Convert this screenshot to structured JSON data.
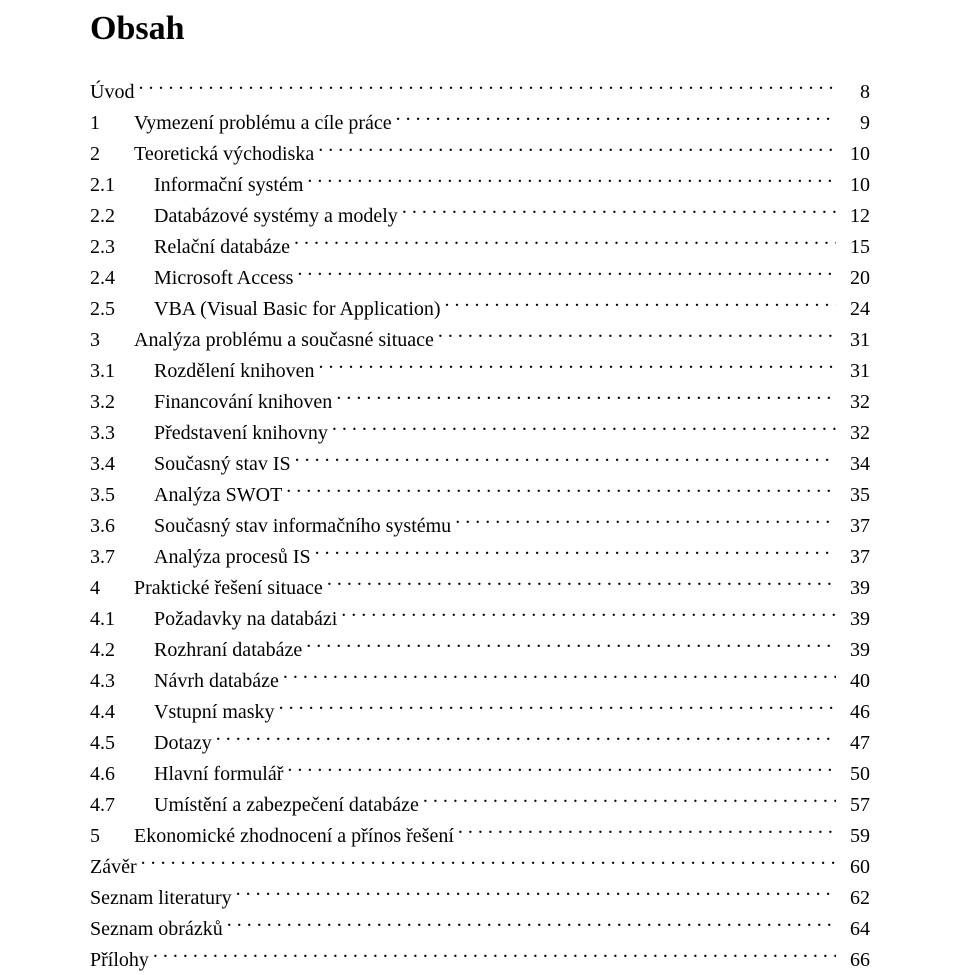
{
  "title": "Obsah",
  "text_color": "#000000",
  "background_color": "#ffffff",
  "font_family": "Times New Roman",
  "title_fontsize": 34,
  "body_fontsize": 20,
  "toc": [
    {
      "level": 0,
      "num": "",
      "label": "Úvod",
      "page": "8"
    },
    {
      "level": 1,
      "num": "1",
      "label": "Vymezení problému a cíle práce",
      "page": "9"
    },
    {
      "level": 1,
      "num": "2",
      "label": "Teoretická východiska",
      "page": "10"
    },
    {
      "level": 2,
      "num": "2.1",
      "label": "Informační systém",
      "page": "10"
    },
    {
      "level": 2,
      "num": "2.2",
      "label": "Databázové systémy a modely",
      "page": "12"
    },
    {
      "level": 2,
      "num": "2.3",
      "label": "Relační databáze",
      "page": "15"
    },
    {
      "level": 2,
      "num": "2.4",
      "label": "Microsoft Access",
      "page": "20"
    },
    {
      "level": 2,
      "num": "2.5",
      "label": "VBA (Visual Basic for Application)",
      "page": "24"
    },
    {
      "level": 1,
      "num": "3",
      "label": "Analýza problému a současné situace",
      "page": "31"
    },
    {
      "level": 2,
      "num": "3.1",
      "label": "Rozdělení knihoven",
      "page": "31"
    },
    {
      "level": 2,
      "num": "3.2",
      "label": "Financování knihoven",
      "page": "32"
    },
    {
      "level": 2,
      "num": "3.3",
      "label": "Představení knihovny",
      "page": "32"
    },
    {
      "level": 2,
      "num": "3.4",
      "label": "Současný stav IS",
      "page": "34"
    },
    {
      "level": 2,
      "num": "3.5",
      "label": "Analýza SWOT",
      "page": "35"
    },
    {
      "level": 2,
      "num": "3.6",
      "label": "Současný stav informačního systému",
      "page": "37"
    },
    {
      "level": 2,
      "num": "3.7",
      "label": "Analýza procesů IS",
      "page": "37"
    },
    {
      "level": 1,
      "num": "4",
      "label": "Praktické řešení situace",
      "page": "39"
    },
    {
      "level": 2,
      "num": "4.1",
      "label": "Požadavky na databázi",
      "page": "39"
    },
    {
      "level": 2,
      "num": "4.2",
      "label": "Rozhraní databáze",
      "page": "39"
    },
    {
      "level": 2,
      "num": "4.3",
      "label": "Návrh databáze",
      "page": "40"
    },
    {
      "level": 2,
      "num": "4.4",
      "label": "Vstupní masky",
      "page": "46"
    },
    {
      "level": 2,
      "num": "4.5",
      "label": "Dotazy",
      "page": "47"
    },
    {
      "level": 2,
      "num": "4.6",
      "label": "Hlavní formulář",
      "page": "50"
    },
    {
      "level": 2,
      "num": "4.7",
      "label": "Umístění a zabezpečení databáze",
      "page": "57"
    },
    {
      "level": 1,
      "num": "5",
      "label": "Ekonomické zhodnocení a přínos řešení",
      "page": "59"
    },
    {
      "level": 0,
      "num": "",
      "label": "Závěr",
      "page": "60"
    },
    {
      "level": 0,
      "num": "",
      "label": "Seznam literatury",
      "page": "62"
    },
    {
      "level": 0,
      "num": "",
      "label": "Seznam obrázků",
      "page": "64"
    },
    {
      "level": 0,
      "num": "",
      "label": "Přílohy",
      "page": "66"
    }
  ]
}
